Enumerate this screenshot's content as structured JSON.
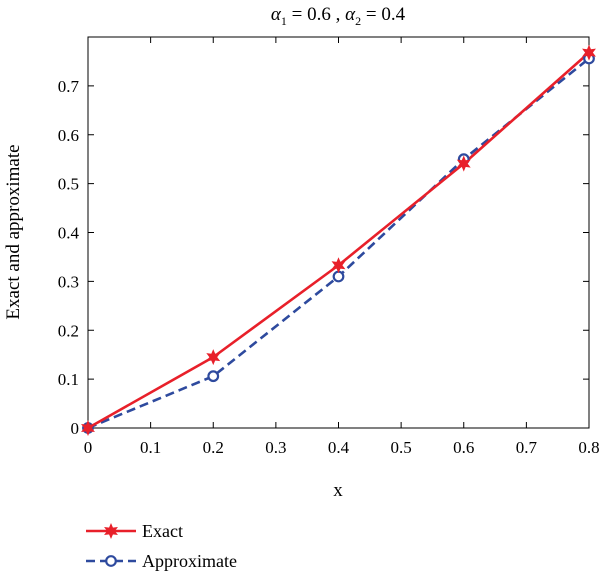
{
  "chart_data": {
    "type": "line",
    "title_parts": {
      "a1_symbol": "α",
      "a1_sub": "1",
      "a1_value": " = 0.6 , ",
      "a2_symbol": "α",
      "a2_sub": "2",
      "a2_value": " = 0.4"
    },
    "xlabel": "x",
    "ylabel": "Exact and approximate",
    "xlim": [
      0,
      0.8
    ],
    "ylim": [
      0,
      0.8
    ],
    "xticks": [
      0,
      0.1,
      0.2,
      0.3,
      0.4,
      0.5,
      0.6,
      0.7,
      0.8
    ],
    "xtick_labels": [
      "0",
      "0.1",
      "0.2",
      "0.3",
      "0.4",
      "0.5",
      "0.6",
      "0.7",
      "0.8"
    ],
    "yticks": [
      0,
      0.1,
      0.2,
      0.3,
      0.4,
      0.5,
      0.6,
      0.7
    ],
    "ytick_labels": [
      "0",
      "0.1",
      "0.2",
      "0.3",
      "0.4",
      "0.5",
      "0.6",
      "0.7"
    ],
    "grid": false,
    "legend_position": "below-left",
    "series": [
      {
        "name": "Exact",
        "color": "#e8202a",
        "line_style": "solid",
        "marker": "star",
        "x": [
          0,
          0.2,
          0.4,
          0.6,
          0.8
        ],
        "y": [
          0,
          0.145,
          0.333,
          0.541,
          0.768
        ]
      },
      {
        "name": "Approximate",
        "color": "#2e4a9e",
        "line_style": "dashed",
        "marker": "circle",
        "x": [
          0,
          0.2,
          0.4,
          0.6,
          0.8
        ],
        "y": [
          0,
          0.106,
          0.31,
          0.55,
          0.756
        ]
      }
    ]
  }
}
